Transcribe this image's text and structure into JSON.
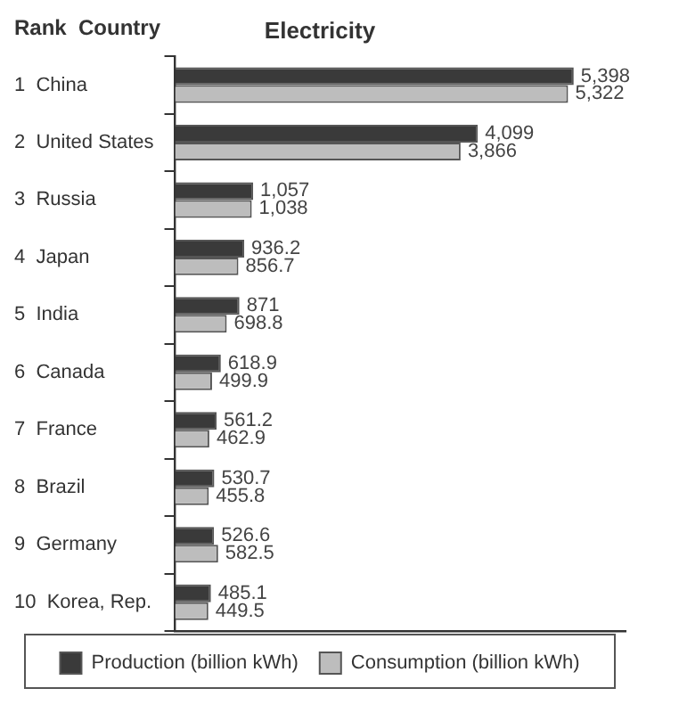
{
  "chart_data": {
    "type": "bar",
    "orientation": "horizontal",
    "title": "Electricity",
    "ylabel": "Rank  Country",
    "categories": [
      "1  China",
      "2  United States",
      "3  Russia",
      "4  Japan",
      "5  India",
      "6  Canada",
      "7  France",
      "8  Brazil",
      "9  Germany",
      "10  Korea, Rep."
    ],
    "series": [
      {
        "name": "Production (billion kWh)",
        "color": "#3a3a3a",
        "values": [
          5398,
          4099,
          1057,
          936.2,
          871,
          618.9,
          561.2,
          530.7,
          526.6,
          485.1
        ],
        "value_labels": [
          "5,398",
          "4,099",
          "1,057",
          "936.2",
          "871",
          "618.9",
          "561.2",
          "530.7",
          "526.6",
          "485.1"
        ]
      },
      {
        "name": "Consumption (billion kWh)",
        "color": "#bdbdbd",
        "values": [
          5322,
          3866,
          1038,
          856.7,
          698.8,
          499.9,
          462.9,
          455.8,
          582.5,
          449.5
        ],
        "value_labels": [
          "5,322",
          "3,866",
          "1,038",
          "856.7",
          "698.8",
          "499.9",
          "462.9",
          "455.8",
          "582.5",
          "449.5"
        ]
      }
    ],
    "xlim": [
      0,
      6100
    ],
    "tick_labels": "y",
    "grid": false,
    "legend": "bottom"
  }
}
